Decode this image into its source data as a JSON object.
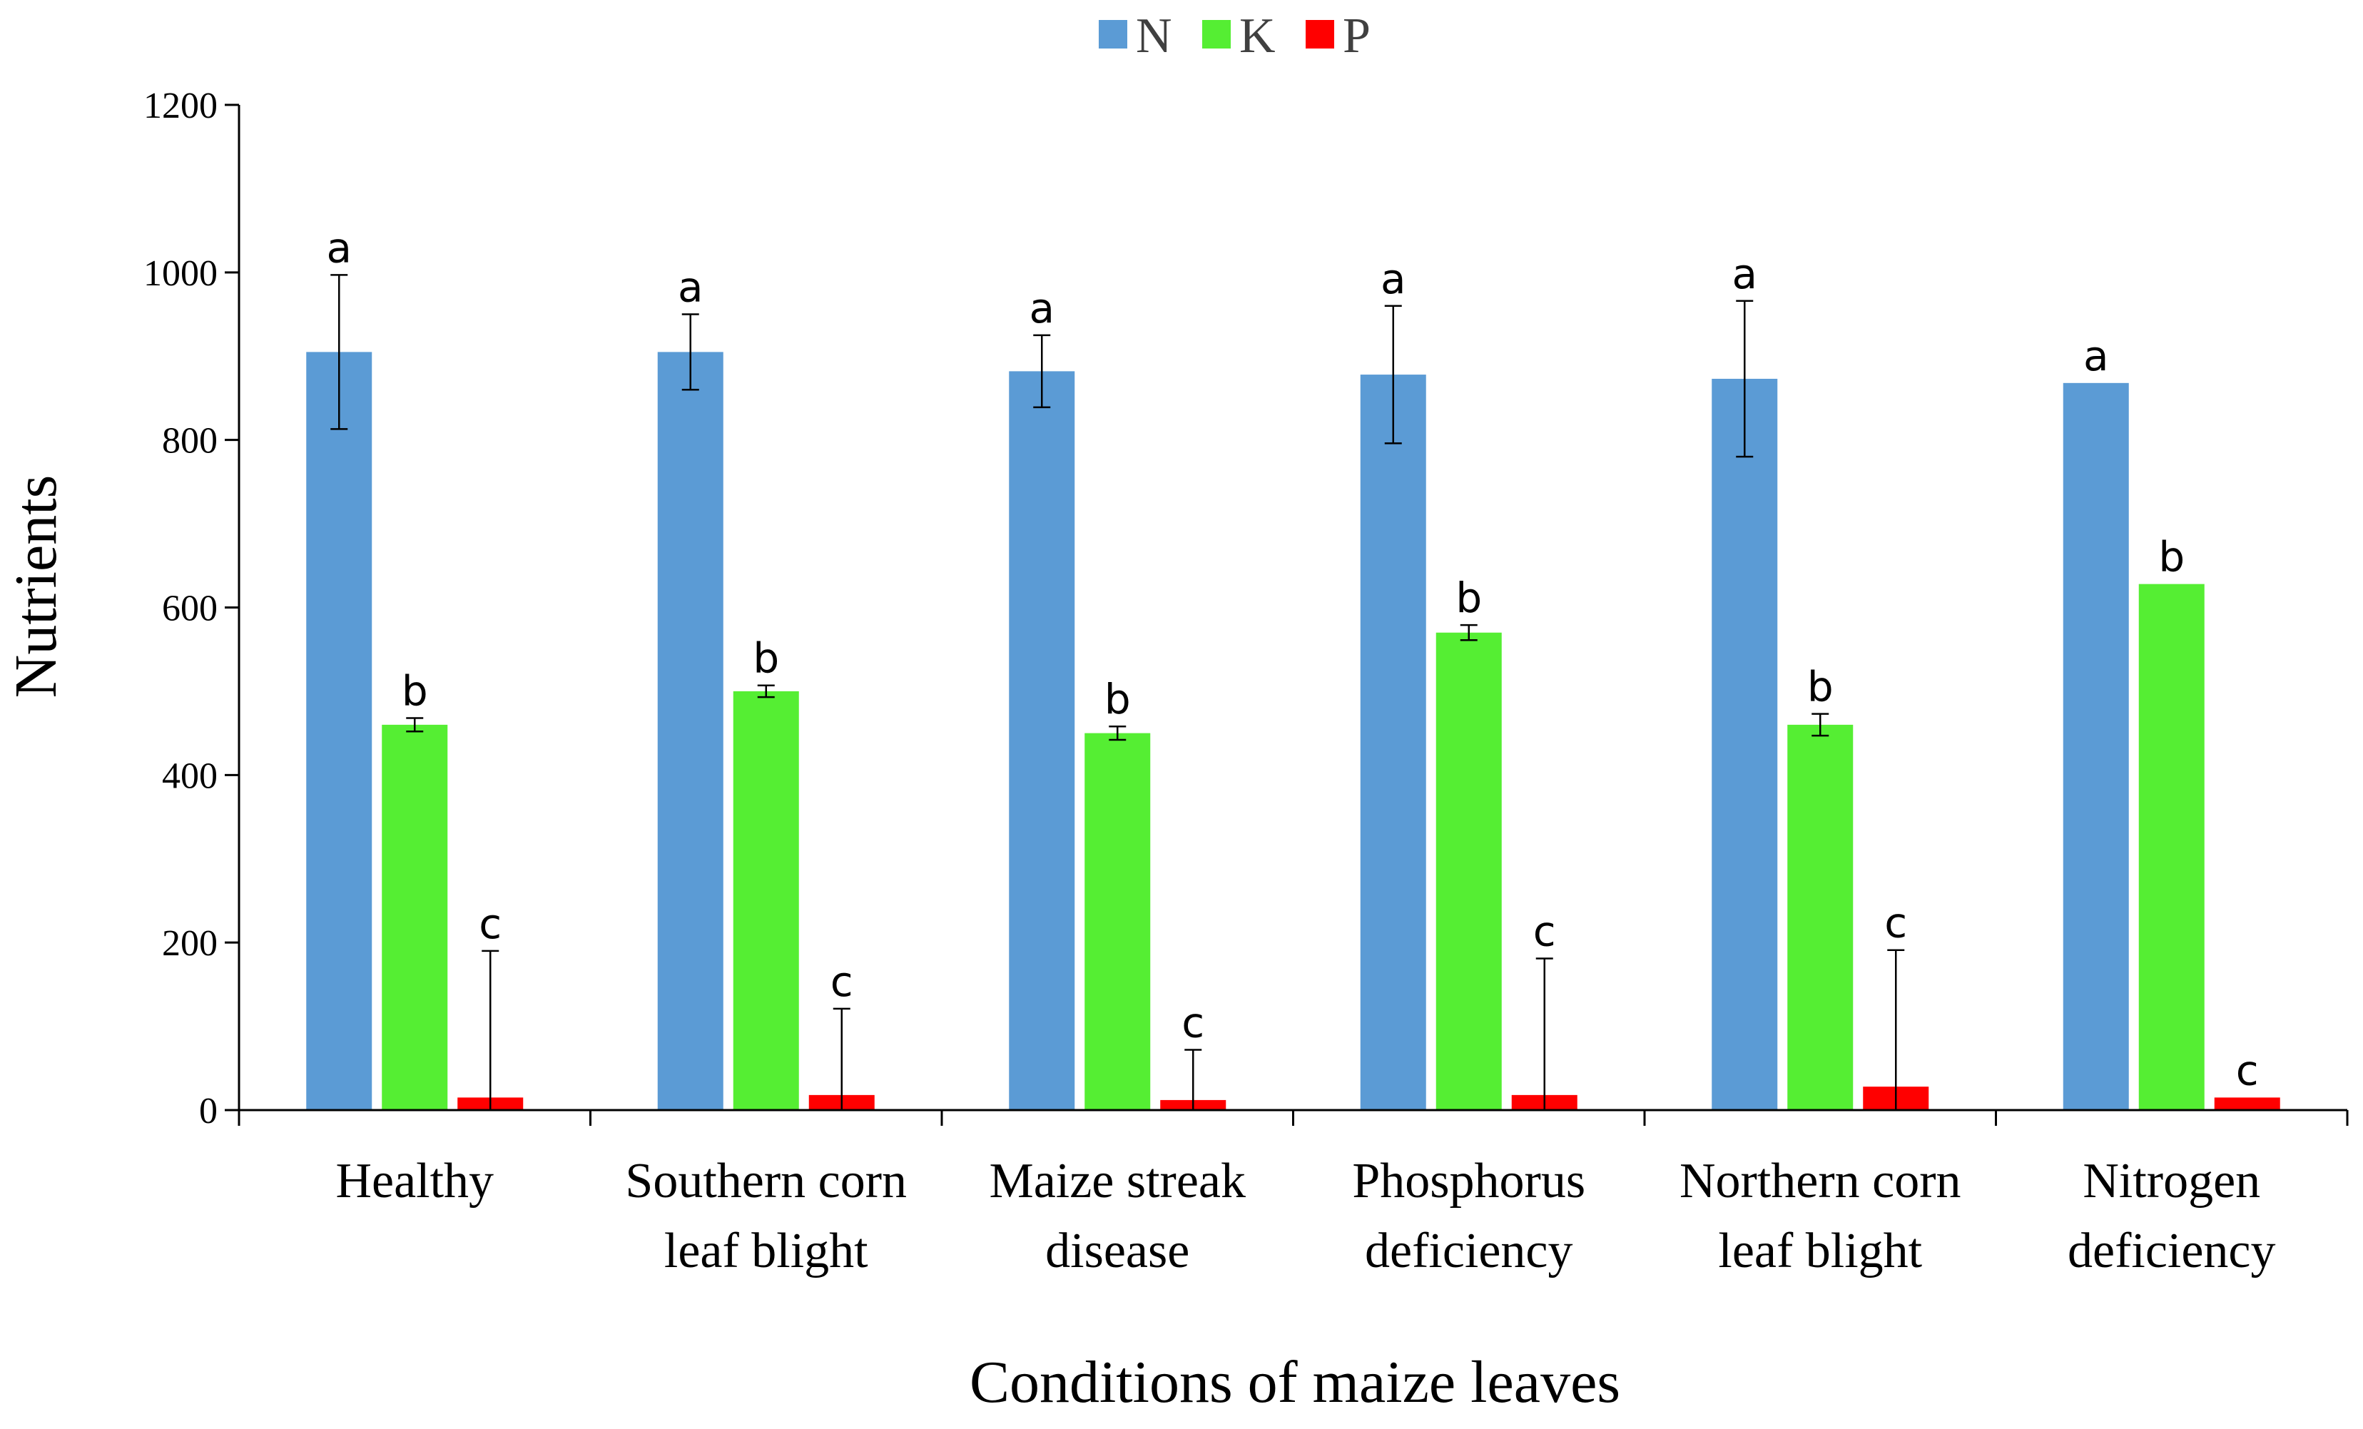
{
  "chart_data": {
    "type": "bar",
    "title": "",
    "xlabel": "Conditions of maize leaves",
    "ylabel": "Nutrients",
    "ylim": [
      0,
      1200
    ],
    "yticks": [
      0,
      200,
      400,
      600,
      800,
      1000,
      1200
    ],
    "categories": [
      [
        "Healthy"
      ],
      [
        "Southern corn",
        "leaf blight"
      ],
      [
        "Maize streak",
        "disease"
      ],
      [
        "Phosphorus",
        "deficiency"
      ],
      [
        "Northern corn",
        "leaf blight"
      ],
      [
        "Nitrogen",
        "deficiency"
      ]
    ],
    "legend_position": "top-center",
    "grid": false,
    "series": [
      {
        "name": "N",
        "color": "#5B9BD5",
        "values": [
          905,
          905,
          882,
          878,
          873,
          868
        ],
        "errors": [
          92,
          45,
          43,
          82,
          93,
          0
        ],
        "labels": [
          "a",
          "a",
          "a",
          "a",
          "a",
          "a"
        ]
      },
      {
        "name": "K",
        "color": "#55EE33",
        "values": [
          460,
          500,
          450,
          570,
          460,
          628
        ],
        "errors": [
          8,
          7,
          8,
          9,
          13,
          0
        ],
        "labels": [
          "b",
          "b",
          "b",
          "b",
          "b",
          "b"
        ]
      },
      {
        "name": "P",
        "color": "#FF0000",
        "values": [
          15,
          18,
          12,
          18,
          28,
          15
        ],
        "errors": [
          175,
          103,
          60,
          163,
          163,
          0
        ],
        "labels": [
          "c",
          "c",
          "c",
          "c",
          "c",
          "c"
        ]
      }
    ]
  }
}
